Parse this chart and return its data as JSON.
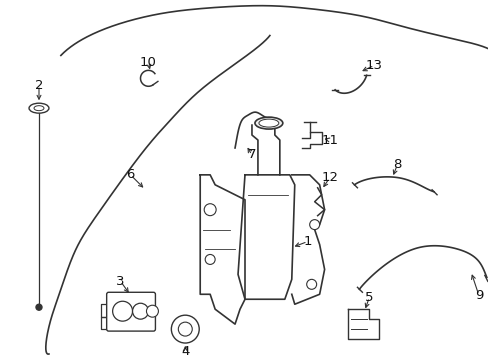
{
  "bg_color": "#ffffff",
  "line_color": "#333333",
  "label_color": "#111111",
  "fig_width": 4.89,
  "fig_height": 3.6,
  "dpi": 100
}
